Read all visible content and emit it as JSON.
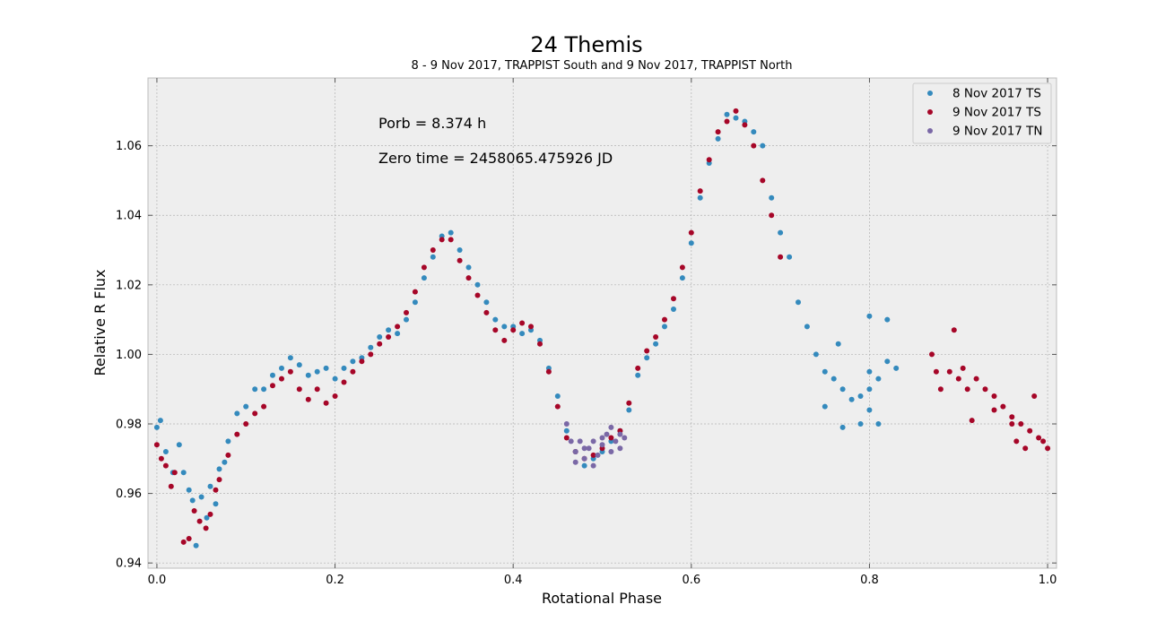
{
  "chart_data": {
    "type": "scatter",
    "title": "24 Themis",
    "subtitle": "8 - 9 Nov 2017, TRAPPIST South and 9 Nov 2017, TRAPPIST North",
    "xlabel": "Rotational Phase",
    "ylabel": "Relative R Flux",
    "xlim": [
      -0.01,
      1.01
    ],
    "ylim": [
      0.9385,
      1.0795
    ],
    "xticks": [
      "0.0",
      "0.2",
      "0.4",
      "0.6",
      "0.8",
      "1.0"
    ],
    "yticks": [
      "0.94",
      "0.96",
      "0.98",
      "1.00",
      "1.02",
      "1.04",
      "1.06"
    ],
    "grid": true,
    "legend_position": "top-right",
    "annotations": [
      "Porb = 8.374 h",
      "Zero time = 2458065.475926 JD"
    ],
    "series": [
      {
        "name": "8 Nov 2017 TS",
        "color": "#348abd",
        "points": [
          [
            0.0,
            0.979
          ],
          [
            0.004,
            0.981
          ],
          [
            0.01,
            0.972
          ],
          [
            0.018,
            0.966
          ],
          [
            0.025,
            0.974
          ],
          [
            0.03,
            0.966
          ],
          [
            0.036,
            0.961
          ],
          [
            0.04,
            0.958
          ],
          [
            0.044,
            0.945
          ],
          [
            0.05,
            0.959
          ],
          [
            0.056,
            0.953
          ],
          [
            0.06,
            0.962
          ],
          [
            0.066,
            0.957
          ],
          [
            0.07,
            0.967
          ],
          [
            0.076,
            0.969
          ],
          [
            0.08,
            0.975
          ],
          [
            0.09,
            0.983
          ],
          [
            0.1,
            0.985
          ],
          [
            0.11,
            0.99
          ],
          [
            0.12,
            0.99
          ],
          [
            0.13,
            0.994
          ],
          [
            0.14,
            0.996
          ],
          [
            0.15,
            0.999
          ],
          [
            0.16,
            0.997
          ],
          [
            0.17,
            0.994
          ],
          [
            0.18,
            0.995
          ],
          [
            0.19,
            0.996
          ],
          [
            0.2,
            0.993
          ],
          [
            0.21,
            0.996
          ],
          [
            0.22,
            0.998
          ],
          [
            0.23,
            0.999
          ],
          [
            0.24,
            1.002
          ],
          [
            0.25,
            1.005
          ],
          [
            0.26,
            1.007
          ],
          [
            0.27,
            1.006
          ],
          [
            0.28,
            1.01
          ],
          [
            0.29,
            1.015
          ],
          [
            0.3,
            1.022
          ],
          [
            0.31,
            1.028
          ],
          [
            0.32,
            1.034
          ],
          [
            0.33,
            1.035
          ],
          [
            0.34,
            1.03
          ],
          [
            0.35,
            1.025
          ],
          [
            0.36,
            1.02
          ],
          [
            0.37,
            1.015
          ],
          [
            0.38,
            1.01
          ],
          [
            0.39,
            1.008
          ],
          [
            0.4,
            1.008
          ],
          [
            0.41,
            1.006
          ],
          [
            0.42,
            1.007
          ],
          [
            0.43,
            1.004
          ],
          [
            0.44,
            0.996
          ],
          [
            0.45,
            0.988
          ],
          [
            0.46,
            0.978
          ],
          [
            0.47,
            0.972
          ],
          [
            0.48,
            0.968
          ],
          [
            0.49,
            0.97
          ],
          [
            0.5,
            0.972
          ],
          [
            0.51,
            0.975
          ],
          [
            0.52,
            0.978
          ],
          [
            0.53,
            0.984
          ],
          [
            0.54,
            0.994
          ],
          [
            0.55,
            0.999
          ],
          [
            0.56,
            1.003
          ],
          [
            0.57,
            1.008
          ],
          [
            0.58,
            1.013
          ],
          [
            0.59,
            1.022
          ],
          [
            0.6,
            1.032
          ],
          [
            0.61,
            1.045
          ],
          [
            0.62,
            1.055
          ],
          [
            0.63,
            1.062
          ],
          [
            0.64,
            1.069
          ],
          [
            0.65,
            1.068
          ],
          [
            0.66,
            1.067
          ],
          [
            0.67,
            1.064
          ],
          [
            0.68,
            1.06
          ],
          [
            0.69,
            1.045
          ],
          [
            0.7,
            1.035
          ],
          [
            0.71,
            1.028
          ],
          [
            0.72,
            1.015
          ],
          [
            0.73,
            1.008
          ],
          [
            0.74,
            1.0
          ],
          [
            0.75,
            0.995
          ],
          [
            0.76,
            0.993
          ],
          [
            0.77,
            0.99
          ],
          [
            0.78,
            0.987
          ],
          [
            0.79,
            0.988
          ],
          [
            0.8,
            0.99
          ],
          [
            0.81,
            0.993
          ],
          [
            0.82,
            0.998
          ],
          [
            0.83,
            0.996
          ],
          [
            0.765,
            1.003
          ],
          [
            0.8,
            1.011
          ],
          [
            0.82,
            1.01
          ],
          [
            0.79,
            0.98
          ],
          [
            0.77,
            0.979
          ],
          [
            0.81,
            0.98
          ],
          [
            0.8,
            0.984
          ],
          [
            0.75,
            0.985
          ],
          [
            0.8,
            0.995
          ]
        ]
      },
      {
        "name": "9 Nov 2017 TS",
        "color": "#a60628",
        "points": [
          [
            0.0,
            0.974
          ],
          [
            0.005,
            0.97
          ],
          [
            0.01,
            0.968
          ],
          [
            0.016,
            0.962
          ],
          [
            0.02,
            0.966
          ],
          [
            0.03,
            0.946
          ],
          [
            0.036,
            0.947
          ],
          [
            0.042,
            0.955
          ],
          [
            0.048,
            0.952
          ],
          [
            0.055,
            0.95
          ],
          [
            0.06,
            0.954
          ],
          [
            0.066,
            0.961
          ],
          [
            0.07,
            0.964
          ],
          [
            0.08,
            0.971
          ],
          [
            0.09,
            0.977
          ],
          [
            0.1,
            0.98
          ],
          [
            0.11,
            0.983
          ],
          [
            0.12,
            0.985
          ],
          [
            0.13,
            0.991
          ],
          [
            0.14,
            0.993
          ],
          [
            0.15,
            0.995
          ],
          [
            0.16,
            0.99
          ],
          [
            0.17,
            0.987
          ],
          [
            0.18,
            0.99
          ],
          [
            0.19,
            0.986
          ],
          [
            0.2,
            0.988
          ],
          [
            0.21,
            0.992
          ],
          [
            0.22,
            0.995
          ],
          [
            0.23,
            0.998
          ],
          [
            0.24,
            1.0
          ],
          [
            0.25,
            1.003
          ],
          [
            0.26,
            1.005
          ],
          [
            0.27,
            1.008
          ],
          [
            0.28,
            1.012
          ],
          [
            0.29,
            1.018
          ],
          [
            0.3,
            1.025
          ],
          [
            0.31,
            1.03
          ],
          [
            0.32,
            1.033
          ],
          [
            0.33,
            1.033
          ],
          [
            0.34,
            1.027
          ],
          [
            0.35,
            1.022
          ],
          [
            0.36,
            1.017
          ],
          [
            0.37,
            1.012
          ],
          [
            0.38,
            1.007
          ],
          [
            0.39,
            1.004
          ],
          [
            0.4,
            1.007
          ],
          [
            0.41,
            1.009
          ],
          [
            0.42,
            1.008
          ],
          [
            0.43,
            1.003
          ],
          [
            0.44,
            0.995
          ],
          [
            0.45,
            0.985
          ],
          [
            0.46,
            0.976
          ],
          [
            0.47,
            0.972
          ],
          [
            0.48,
            0.97
          ],
          [
            0.49,
            0.971
          ],
          [
            0.5,
            0.973
          ],
          [
            0.51,
            0.976
          ],
          [
            0.52,
            0.978
          ],
          [
            0.53,
            0.986
          ],
          [
            0.54,
            0.996
          ],
          [
            0.55,
            1.001
          ],
          [
            0.56,
            1.005
          ],
          [
            0.57,
            1.01
          ],
          [
            0.58,
            1.016
          ],
          [
            0.59,
            1.025
          ],
          [
            0.6,
            1.035
          ],
          [
            0.61,
            1.047
          ],
          [
            0.62,
            1.056
          ],
          [
            0.63,
            1.064
          ],
          [
            0.64,
            1.067
          ],
          [
            0.65,
            1.07
          ],
          [
            0.66,
            1.066
          ],
          [
            0.67,
            1.06
          ],
          [
            0.68,
            1.05
          ],
          [
            0.69,
            1.04
          ],
          [
            0.7,
            1.028
          ],
          [
            0.87,
            1.0
          ],
          [
            0.875,
            0.995
          ],
          [
            0.88,
            0.99
          ],
          [
            0.89,
            0.995
          ],
          [
            0.895,
            1.007
          ],
          [
            0.9,
            0.993
          ],
          [
            0.905,
            0.996
          ],
          [
            0.91,
            0.99
          ],
          [
            0.915,
            0.981
          ],
          [
            0.92,
            0.993
          ],
          [
            0.93,
            0.99
          ],
          [
            0.94,
            0.988
          ],
          [
            0.95,
            0.985
          ],
          [
            0.96,
            0.982
          ],
          [
            0.965,
            0.975
          ],
          [
            0.97,
            0.98
          ],
          [
            0.975,
            0.973
          ],
          [
            0.98,
            0.978
          ],
          [
            0.985,
            0.988
          ],
          [
            0.99,
            0.976
          ],
          [
            0.995,
            0.975
          ],
          [
            1.0,
            0.973
          ],
          [
            0.96,
            0.98
          ],
          [
            0.94,
            0.984
          ]
        ]
      },
      {
        "name": "9 Nov 2017 TN",
        "color": "#7a68a6",
        "points": [
          [
            0.46,
            0.98
          ],
          [
            0.465,
            0.975
          ],
          [
            0.47,
            0.972
          ],
          [
            0.475,
            0.975
          ],
          [
            0.48,
            0.97
          ],
          [
            0.485,
            0.973
          ],
          [
            0.49,
            0.975
          ],
          [
            0.495,
            0.971
          ],
          [
            0.5,
            0.974
          ],
          [
            0.505,
            0.977
          ],
          [
            0.51,
            0.972
          ],
          [
            0.515,
            0.975
          ],
          [
            0.52,
            0.977
          ],
          [
            0.525,
            0.976
          ],
          [
            0.47,
            0.969
          ],
          [
            0.48,
            0.973
          ],
          [
            0.49,
            0.968
          ],
          [
            0.5,
            0.976
          ],
          [
            0.51,
            0.979
          ],
          [
            0.52,
            0.973
          ]
        ]
      }
    ]
  }
}
